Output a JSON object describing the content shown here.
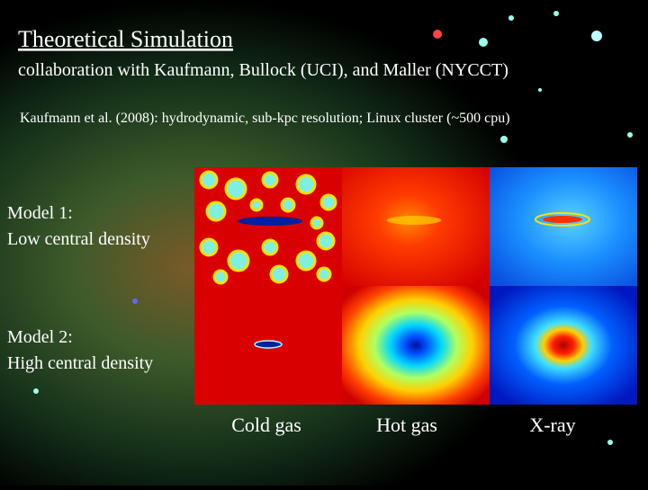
{
  "slide": {
    "title": "Theoretical Simulation",
    "subtitle": "collaboration with Kaufmann, Bullock (UCI), and Maller (NYCCT)",
    "note": "Kaufmann et al. (2008): hydrodynamic, sub-kpc resolution; Linux cluster (~500 cpu)",
    "models": [
      {
        "name": "Model 1:",
        "description": "Low central density"
      },
      {
        "name": "Model 2:",
        "description": "High central density"
      }
    ],
    "columns": [
      "Cold gas",
      "Hot gas",
      "X-ray"
    ]
  }
}
